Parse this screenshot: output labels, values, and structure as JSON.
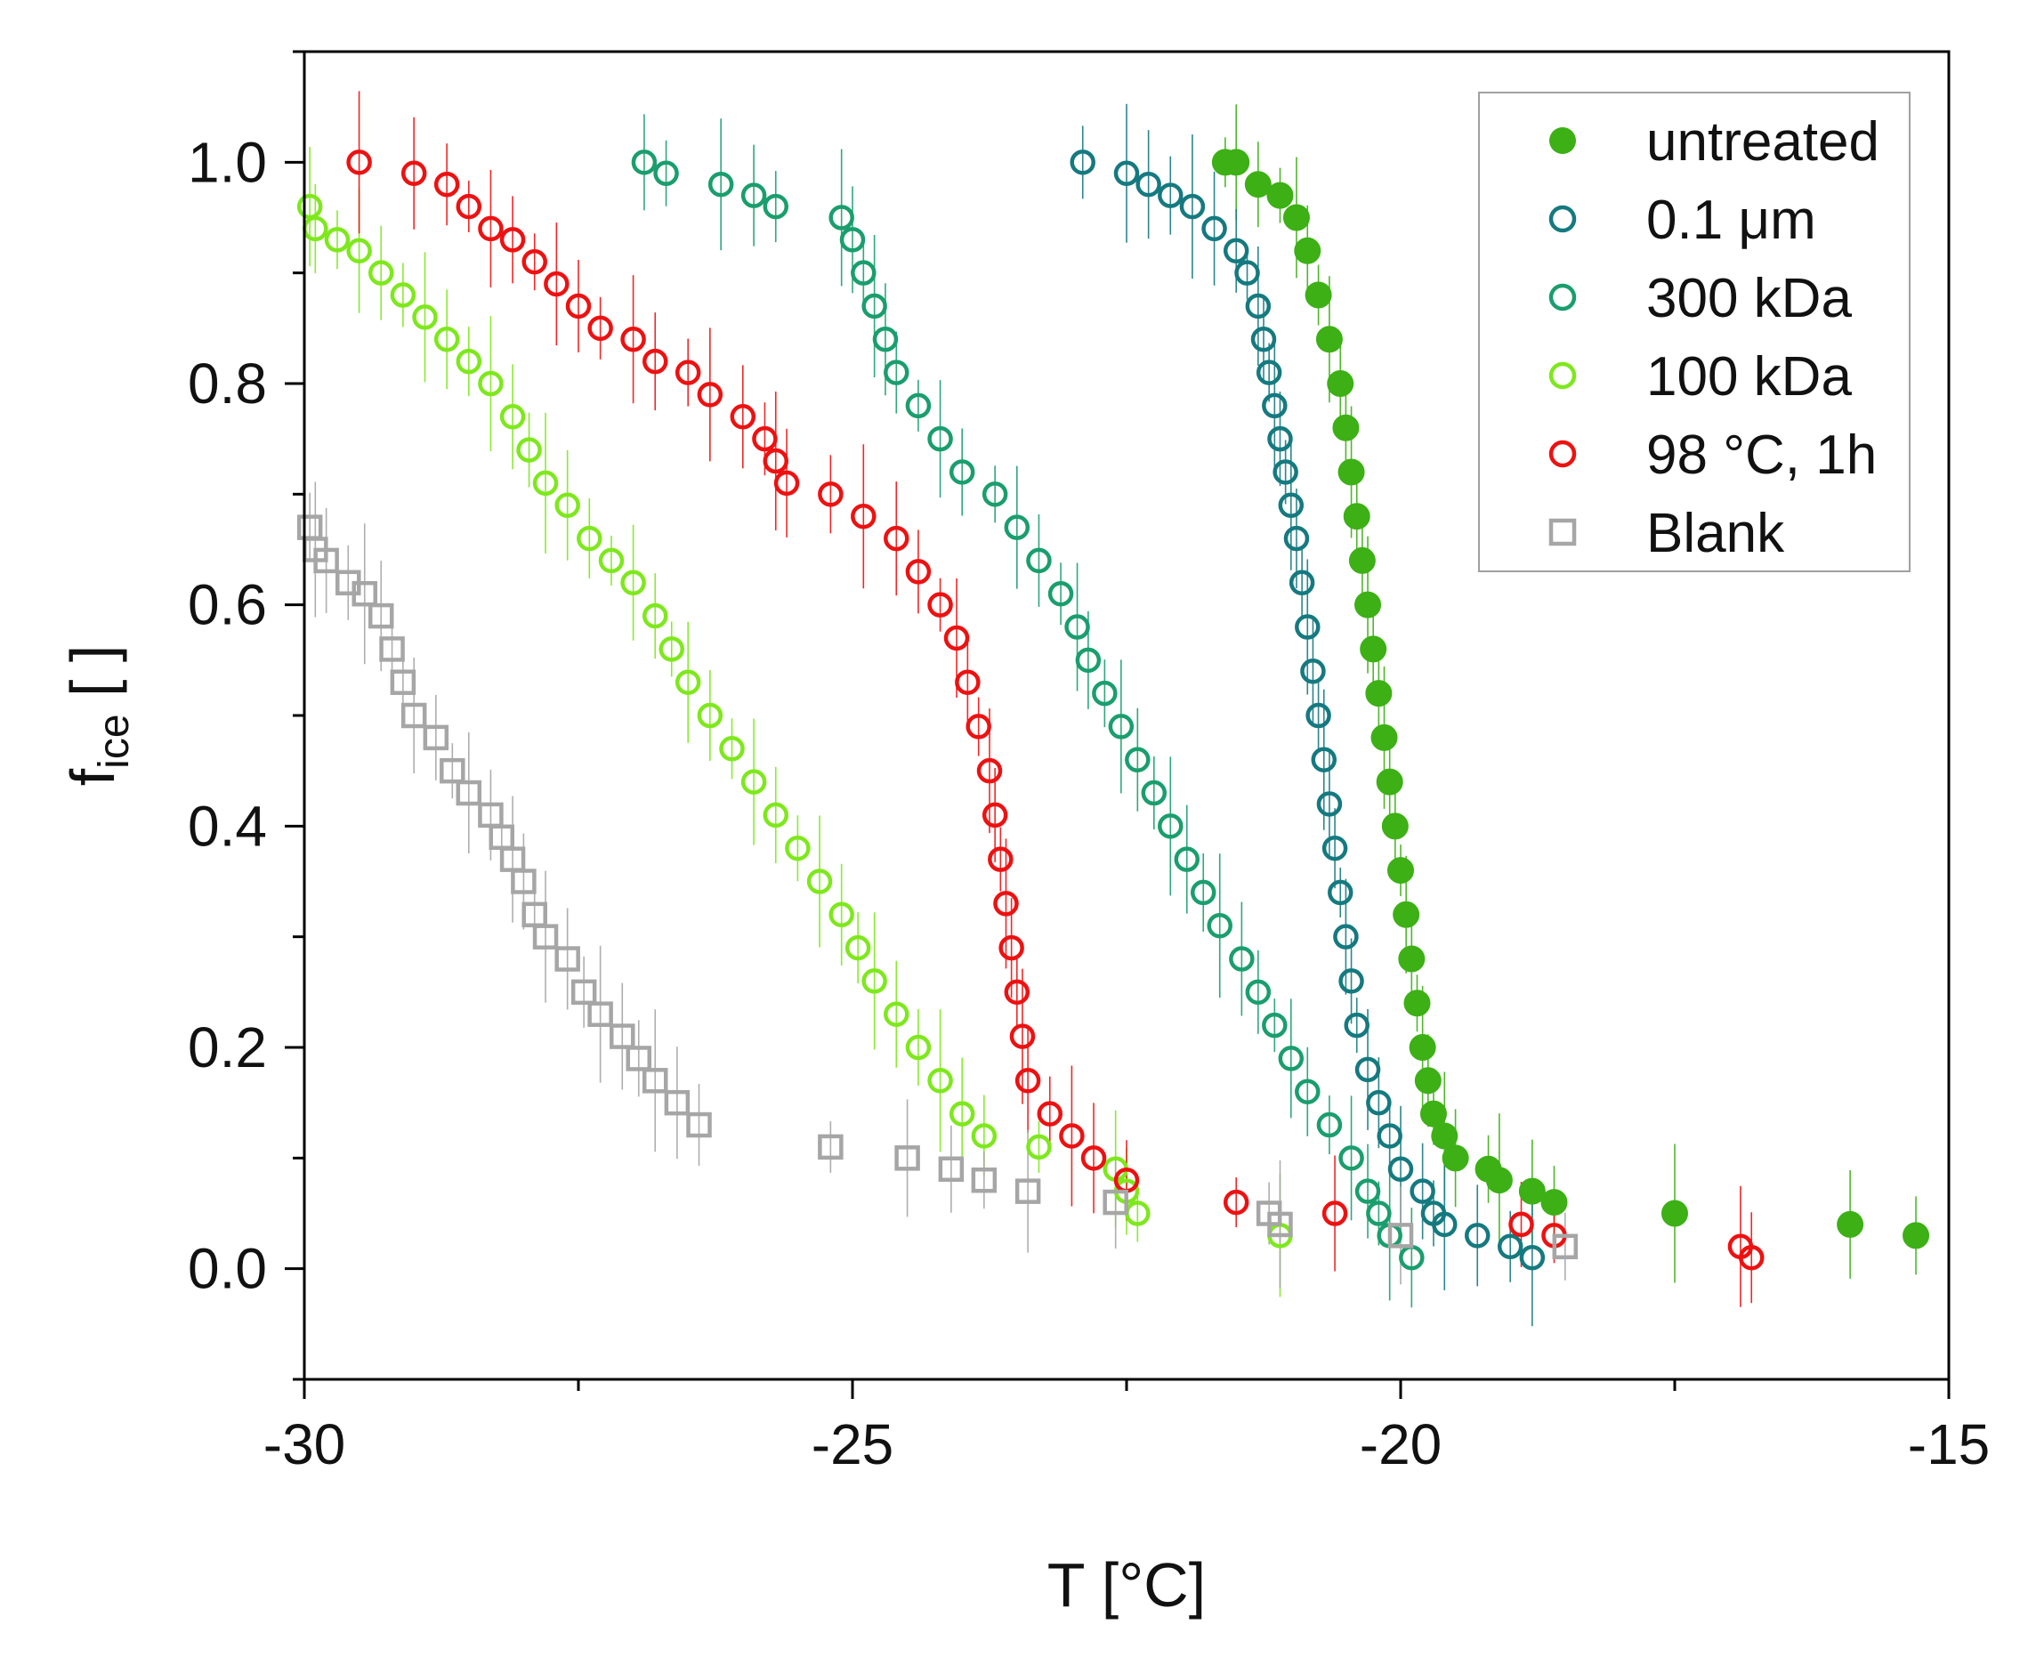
{
  "chart_data": {
    "type": "scatter",
    "title": "",
    "xlabel": "T [°C]",
    "ylabel_main": "f",
    "ylabel_sub": "ice",
    "ylabel_suffix": " [ ]",
    "xlim": [
      -30,
      -15
    ],
    "ylim": [
      -0.1,
      1.1
    ],
    "x_ticks": [
      -30,
      -25,
      -20,
      -15
    ],
    "x_tick_labels": [
      "-30",
      "-25",
      "-20",
      "-15"
    ],
    "y_ticks": [
      0.0,
      0.2,
      0.4,
      0.6,
      0.8,
      1.0
    ],
    "y_tick_labels": [
      "0.0",
      "0.2",
      "0.4",
      "0.6",
      "0.8",
      "1.0"
    ],
    "legend_position": "top-right",
    "series": [
      {
        "name": "untreated",
        "color": "#3cb015",
        "marker": "filled-circle",
        "points": [
          [
            -21.6,
            1.0
          ],
          [
            -21.5,
            1.0
          ],
          [
            -21.3,
            0.98
          ],
          [
            -21.1,
            0.97
          ],
          [
            -20.95,
            0.95
          ],
          [
            -20.85,
            0.92
          ],
          [
            -20.75,
            0.88
          ],
          [
            -20.65,
            0.84
          ],
          [
            -20.55,
            0.8
          ],
          [
            -20.5,
            0.76
          ],
          [
            -20.45,
            0.72
          ],
          [
            -20.4,
            0.68
          ],
          [
            -20.35,
            0.64
          ],
          [
            -20.3,
            0.6
          ],
          [
            -20.25,
            0.56
          ],
          [
            -20.2,
            0.52
          ],
          [
            -20.15,
            0.48
          ],
          [
            -20.1,
            0.44
          ],
          [
            -20.05,
            0.4
          ],
          [
            -20.0,
            0.36
          ],
          [
            -19.95,
            0.32
          ],
          [
            -19.9,
            0.28
          ],
          [
            -19.85,
            0.24
          ],
          [
            -19.8,
            0.2
          ],
          [
            -19.75,
            0.17
          ],
          [
            -19.7,
            0.14
          ],
          [
            -19.6,
            0.12
          ],
          [
            -19.5,
            0.1
          ],
          [
            -19.2,
            0.09
          ],
          [
            -19.1,
            0.08
          ],
          [
            -18.8,
            0.07
          ],
          [
            -18.6,
            0.06
          ],
          [
            -17.5,
            0.05
          ],
          [
            -15.9,
            0.04
          ],
          [
            -15.3,
            0.03
          ]
        ]
      },
      {
        "name": "0.1 μm",
        "color": "#157a80",
        "marker": "open-circle",
        "points": [
          [
            -22.9,
            1.0
          ],
          [
            -22.5,
            0.99
          ],
          [
            -22.3,
            0.98
          ],
          [
            -22.1,
            0.97
          ],
          [
            -21.9,
            0.96
          ],
          [
            -21.7,
            0.94
          ],
          [
            -21.5,
            0.92
          ],
          [
            -21.4,
            0.9
          ],
          [
            -21.3,
            0.87
          ],
          [
            -21.25,
            0.84
          ],
          [
            -21.2,
            0.81
          ],
          [
            -21.15,
            0.78
          ],
          [
            -21.1,
            0.75
          ],
          [
            -21.05,
            0.72
          ],
          [
            -21.0,
            0.69
          ],
          [
            -20.95,
            0.66
          ],
          [
            -20.9,
            0.62
          ],
          [
            -20.85,
            0.58
          ],
          [
            -20.8,
            0.54
          ],
          [
            -20.75,
            0.5
          ],
          [
            -20.7,
            0.46
          ],
          [
            -20.65,
            0.42
          ],
          [
            -20.6,
            0.38
          ],
          [
            -20.55,
            0.34
          ],
          [
            -20.5,
            0.3
          ],
          [
            -20.45,
            0.26
          ],
          [
            -20.4,
            0.22
          ],
          [
            -20.3,
            0.18
          ],
          [
            -20.2,
            0.15
          ],
          [
            -20.1,
            0.12
          ],
          [
            -20.0,
            0.09
          ],
          [
            -19.8,
            0.07
          ],
          [
            -19.7,
            0.05
          ],
          [
            -19.6,
            0.04
          ],
          [
            -19.3,
            0.03
          ],
          [
            -19.0,
            0.02
          ],
          [
            -18.8,
            0.01
          ]
        ]
      },
      {
        "name": "300 kDa",
        "color": "#1a9e6e",
        "marker": "open-circle",
        "points": [
          [
            -26.9,
            1.0
          ],
          [
            -26.7,
            0.99
          ],
          [
            -26.2,
            0.98
          ],
          [
            -25.9,
            0.97
          ],
          [
            -25.7,
            0.96
          ],
          [
            -25.1,
            0.95
          ],
          [
            -25.0,
            0.93
          ],
          [
            -24.9,
            0.9
          ],
          [
            -24.8,
            0.87
          ],
          [
            -24.7,
            0.84
          ],
          [
            -24.6,
            0.81
          ],
          [
            -24.4,
            0.78
          ],
          [
            -24.2,
            0.75
          ],
          [
            -24.0,
            0.72
          ],
          [
            -23.7,
            0.7
          ],
          [
            -23.5,
            0.67
          ],
          [
            -23.3,
            0.64
          ],
          [
            -23.1,
            0.61
          ],
          [
            -22.95,
            0.58
          ],
          [
            -22.85,
            0.55
          ],
          [
            -22.7,
            0.52
          ],
          [
            -22.55,
            0.49
          ],
          [
            -22.4,
            0.46
          ],
          [
            -22.25,
            0.43
          ],
          [
            -22.1,
            0.4
          ],
          [
            -21.95,
            0.37
          ],
          [
            -21.8,
            0.34
          ],
          [
            -21.65,
            0.31
          ],
          [
            -21.45,
            0.28
          ],
          [
            -21.3,
            0.25
          ],
          [
            -21.15,
            0.22
          ],
          [
            -21.0,
            0.19
          ],
          [
            -20.85,
            0.16
          ],
          [
            -20.65,
            0.13
          ],
          [
            -20.45,
            0.1
          ],
          [
            -20.3,
            0.07
          ],
          [
            -20.2,
            0.05
          ],
          [
            -20.1,
            0.03
          ],
          [
            -19.9,
            0.01
          ]
        ]
      },
      {
        "name": "100 kDa",
        "color": "#7ee81c",
        "marker": "open-circle",
        "points": [
          [
            -29.95,
            0.96
          ],
          [
            -29.9,
            0.94
          ],
          [
            -29.7,
            0.93
          ],
          [
            -29.5,
            0.92
          ],
          [
            -29.3,
            0.9
          ],
          [
            -29.1,
            0.88
          ],
          [
            -28.9,
            0.86
          ],
          [
            -28.7,
            0.84
          ],
          [
            -28.5,
            0.82
          ],
          [
            -28.3,
            0.8
          ],
          [
            -28.1,
            0.77
          ],
          [
            -27.95,
            0.74
          ],
          [
            -27.8,
            0.71
          ],
          [
            -27.6,
            0.69
          ],
          [
            -27.4,
            0.66
          ],
          [
            -27.2,
            0.64
          ],
          [
            -27.0,
            0.62
          ],
          [
            -26.8,
            0.59
          ],
          [
            -26.65,
            0.56
          ],
          [
            -26.5,
            0.53
          ],
          [
            -26.3,
            0.5
          ],
          [
            -26.1,
            0.47
          ],
          [
            -25.9,
            0.44
          ],
          [
            -25.7,
            0.41
          ],
          [
            -25.5,
            0.38
          ],
          [
            -25.3,
            0.35
          ],
          [
            -25.1,
            0.32
          ],
          [
            -24.95,
            0.29
          ],
          [
            -24.8,
            0.26
          ],
          [
            -24.6,
            0.23
          ],
          [
            -24.4,
            0.2
          ],
          [
            -24.2,
            0.17
          ],
          [
            -24.0,
            0.14
          ],
          [
            -23.8,
            0.12
          ],
          [
            -23.3,
            0.11
          ],
          [
            -22.6,
            0.09
          ],
          [
            -22.5,
            0.07
          ],
          [
            -22.4,
            0.05
          ],
          [
            -21.1,
            0.03
          ]
        ]
      },
      {
        "name": "98 °C, 1h",
        "color": "#ee1111",
        "marker": "open-circle",
        "points": [
          [
            -29.5,
            1.0
          ],
          [
            -29.0,
            0.99
          ],
          [
            -28.7,
            0.98
          ],
          [
            -28.5,
            0.96
          ],
          [
            -28.3,
            0.94
          ],
          [
            -28.1,
            0.93
          ],
          [
            -27.9,
            0.91
          ],
          [
            -27.7,
            0.89
          ],
          [
            -27.5,
            0.87
          ],
          [
            -27.3,
            0.85
          ],
          [
            -27.0,
            0.84
          ],
          [
            -26.8,
            0.82
          ],
          [
            -26.5,
            0.81
          ],
          [
            -26.3,
            0.79
          ],
          [
            -26.0,
            0.77
          ],
          [
            -25.8,
            0.75
          ],
          [
            -25.7,
            0.73
          ],
          [
            -25.6,
            0.71
          ],
          [
            -25.2,
            0.7
          ],
          [
            -24.9,
            0.68
          ],
          [
            -24.6,
            0.66
          ],
          [
            -24.4,
            0.63
          ],
          [
            -24.2,
            0.6
          ],
          [
            -24.05,
            0.57
          ],
          [
            -23.95,
            0.53
          ],
          [
            -23.85,
            0.49
          ],
          [
            -23.75,
            0.45
          ],
          [
            -23.7,
            0.41
          ],
          [
            -23.65,
            0.37
          ],
          [
            -23.6,
            0.33
          ],
          [
            -23.55,
            0.29
          ],
          [
            -23.5,
            0.25
          ],
          [
            -23.45,
            0.21
          ],
          [
            -23.4,
            0.17
          ],
          [
            -23.2,
            0.14
          ],
          [
            -23.0,
            0.12
          ],
          [
            -22.8,
            0.1
          ],
          [
            -22.5,
            0.08
          ],
          [
            -21.5,
            0.06
          ],
          [
            -20.6,
            0.05
          ],
          [
            -18.9,
            0.04
          ],
          [
            -18.6,
            0.03
          ],
          [
            -16.9,
            0.02
          ],
          [
            -16.8,
            0.01
          ]
        ]
      },
      {
        "name": "Blank",
        "color": "#a6a6a6",
        "marker": "open-square",
        "points": [
          [
            -29.95,
            0.67
          ],
          [
            -29.9,
            0.65
          ],
          [
            -29.8,
            0.64
          ],
          [
            -29.6,
            0.62
          ],
          [
            -29.45,
            0.61
          ],
          [
            -29.3,
            0.59
          ],
          [
            -29.2,
            0.56
          ],
          [
            -29.1,
            0.53
          ],
          [
            -29.0,
            0.5
          ],
          [
            -28.8,
            0.48
          ],
          [
            -28.65,
            0.45
          ],
          [
            -28.5,
            0.43
          ],
          [
            -28.3,
            0.41
          ],
          [
            -28.2,
            0.39
          ],
          [
            -28.1,
            0.37
          ],
          [
            -28.0,
            0.35
          ],
          [
            -27.9,
            0.32
          ],
          [
            -27.8,
            0.3
          ],
          [
            -27.6,
            0.28
          ],
          [
            -27.45,
            0.25
          ],
          [
            -27.3,
            0.23
          ],
          [
            -27.1,
            0.21
          ],
          [
            -26.95,
            0.19
          ],
          [
            -26.8,
            0.17
          ],
          [
            -26.6,
            0.15
          ],
          [
            -26.4,
            0.13
          ],
          [
            -25.2,
            0.11
          ],
          [
            -24.5,
            0.1
          ],
          [
            -24.1,
            0.09
          ],
          [
            -23.8,
            0.08
          ],
          [
            -23.4,
            0.07
          ],
          [
            -22.6,
            0.06
          ],
          [
            -21.2,
            0.05
          ],
          [
            -21.1,
            0.04
          ],
          [
            -20.0,
            0.03
          ],
          [
            -18.5,
            0.02
          ]
        ]
      }
    ]
  }
}
